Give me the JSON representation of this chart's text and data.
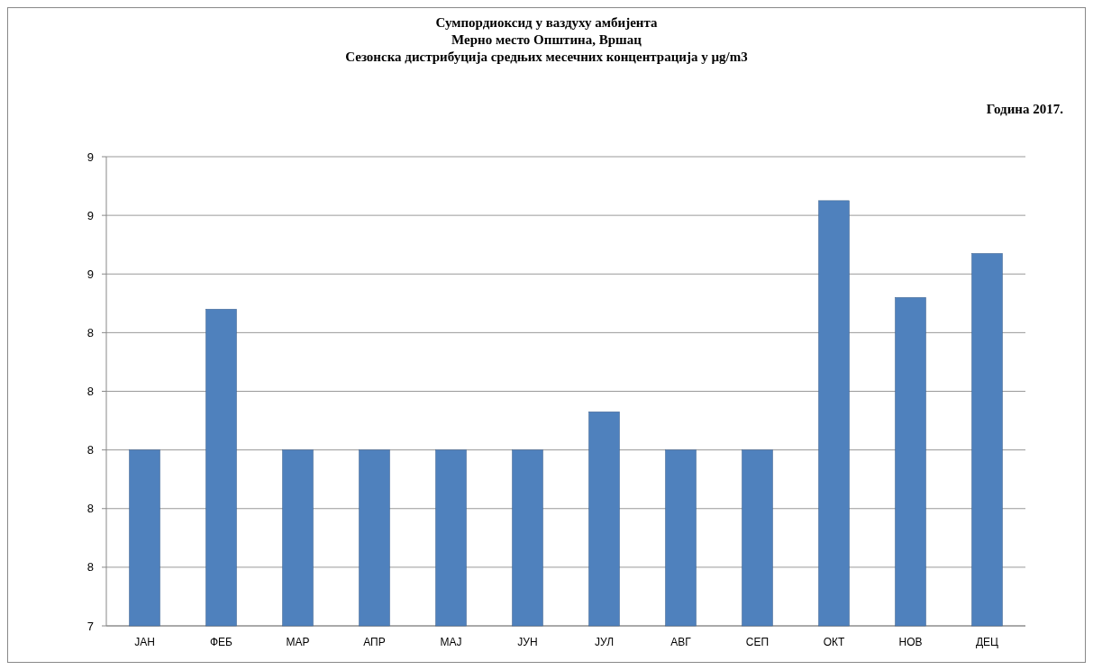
{
  "chart_data": {
    "type": "bar",
    "title": "Сумпордиоксид у ваздуху амбијента\nМерно место Општина, Вршац\nСезонска дистрибуција средњих месечних концентрација у µg/m3",
    "subtitle": "Година 2017.",
    "categories": [
      "ЈАН",
      "ФЕБ",
      "МАР",
      "АПР",
      "МАЈ",
      "ЈУН",
      "ЈУЛ",
      "АВГ",
      "СЕП",
      "ОКТ",
      "НОВ",
      "ДЕЦ"
    ],
    "values": [
      8.0,
      8.48,
      8.0,
      8.0,
      8.0,
      8.0,
      8.13,
      8.0,
      8.0,
      8.85,
      8.52,
      8.67
    ],
    "color": "#4f81bd",
    "ylim": [
      7.4,
      9.0
    ],
    "yticks": [
      {
        "value": 7.4,
        "label": "7"
      },
      {
        "value": 7.6,
        "label": "8"
      },
      {
        "value": 7.8,
        "label": "8"
      },
      {
        "value": 8.0,
        "label": "8"
      },
      {
        "value": 8.2,
        "label": "8"
      },
      {
        "value": 8.4,
        "label": "8"
      },
      {
        "value": 8.6,
        "label": "9"
      },
      {
        "value": 8.8,
        "label": "9"
      },
      {
        "value": 9.0,
        "label": "9"
      }
    ],
    "grid": "y"
  }
}
